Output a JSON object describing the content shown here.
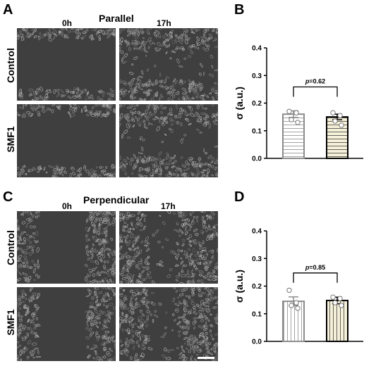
{
  "panels": {
    "A": {
      "letter": "A",
      "title": "Parallel",
      "col_labels": [
        "0h",
        "17h"
      ],
      "row_labels": [
        "Control",
        "SMF1"
      ]
    },
    "C": {
      "letter": "C",
      "title": "Perpendicular",
      "col_labels": [
        "0h",
        "17h"
      ],
      "row_labels": [
        "Control",
        "SMF1"
      ]
    },
    "B": {
      "letter": "B"
    },
    "D": {
      "letter": "D"
    }
  },
  "colors": {
    "micro_bg": "#3f3f3f",
    "micro_cells": "#8a8a8a",
    "control_bar_stroke": "#8c8c8c",
    "smf1_bar_stroke": "#000000",
    "smf1_bar_fill": "#f5f0d8"
  },
  "chart_data": [
    {
      "panel": "B",
      "type": "bar",
      "categories": [
        "",
        ""
      ],
      "series": [
        {
          "values": [
            0.16,
            0.15
          ],
          "errors": [
            0.012,
            0.01
          ]
        }
      ],
      "points": [
        [
          0.17,
          0.165,
          0.14,
          0.13
        ],
        [
          0.165,
          0.155,
          0.135,
          0.12
        ]
      ],
      "hatch": "horizontal",
      "ylabel": "σ (a.u.)",
      "ylim": [
        0,
        0.4
      ],
      "yticks": [
        "0.0",
        "0.1",
        "0.2",
        "0.3",
        "0.4"
      ],
      "p_value_label": "p =0.62",
      "p_italic": "p",
      "p_rest": "=0.62"
    },
    {
      "panel": "D",
      "type": "bar",
      "categories": [
        "",
        ""
      ],
      "series": [
        {
          "values": [
            0.145,
            0.148
          ],
          "errors": [
            0.016,
            0.012
          ]
        }
      ],
      "points": [
        [
          0.185,
          0.14,
          0.13,
          0.12
        ],
        [
          0.16,
          0.155,
          0.14,
          0.13
        ]
      ],
      "hatch": "vertical",
      "ylabel": "σ (a.u.)",
      "ylim": [
        0,
        0.4
      ],
      "yticks": [
        "0.0",
        "0.1",
        "0.2",
        "0.3",
        "0.4"
      ],
      "p_value_label": "p =0.85",
      "p_italic": "p",
      "p_rest": "=0.85"
    }
  ]
}
